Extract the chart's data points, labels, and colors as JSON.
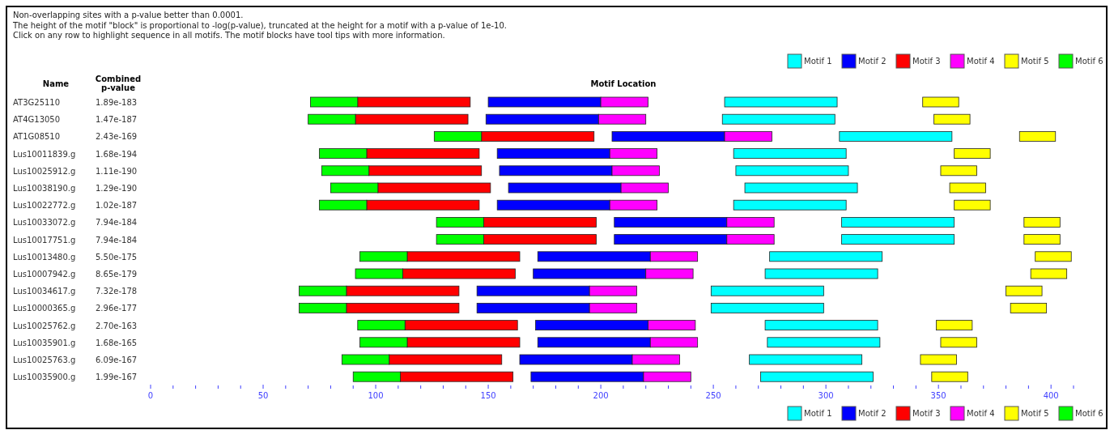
{
  "chart_data": {
    "type": "bar",
    "orientation": "horizontal",
    "annotations": [
      "Non-overlapping sites with a p-value better than 0.0001.",
      "The height of the motif \"block\" is proportional to -log(p-value), truncated at the height for a motif with a p-value of 1e-10.",
      "Click on any row to highlight sequence in all motifs. The motif blocks have tool tips with more information."
    ],
    "ylabel": "Name",
    "y2label": "Combined p-value",
    "xlabel": "Motif Location",
    "categories": [
      "AT3G25110",
      "AT4G13050",
      "AT1G08510",
      "Lus10011839.g",
      "Lus10025912.g",
      "Lus10038190.g",
      "Lus10022772.g",
      "Lus10033072.g",
      "Lus10017751.g",
      "Lus10013480.g",
      "Lus10007942.g",
      "Lus10034617.g",
      "Lus10000365.g",
      "Lus10025762.g",
      "Lus10035901.g",
      "Lus10025763.g",
      "Lus10035900.g"
    ],
    "y2_categories": [
      "1.89e-183",
      "1.47e-187",
      "2.43e-169",
      "1.68e-194",
      "1.11e-190",
      "1.29e-190",
      "1.02e-187",
      "7.94e-184",
      "7.94e-184",
      "5.50e-175",
      "8.65e-179",
      "7.32e-178",
      "2.96e-177",
      "2.70e-163",
      "1.68e-165",
      "6.09e-167",
      "1.99e-167"
    ],
    "series": [
      {
        "name": "Motif 1",
        "color": "#00ffff",
        "base": [
          255,
          254,
          306,
          259,
          260,
          264,
          259,
          307,
          307,
          275,
          273,
          249,
          249,
          273,
          274,
          266,
          271
        ],
        "values": [
          50,
          50,
          50,
          50,
          50,
          50,
          50,
          50,
          50,
          50,
          50,
          50,
          50,
          50,
          50,
          50,
          50
        ]
      },
      {
        "name": "Motif 2",
        "color": "#0000ff",
        "base": [
          150,
          149,
          205,
          154,
          155,
          159,
          154,
          206,
          206,
          172,
          170,
          145,
          145,
          171,
          172,
          164,
          169
        ],
        "values": [
          50,
          50,
          50,
          50,
          50,
          50,
          50,
          50,
          50,
          50,
          50,
          50,
          50,
          50,
          50,
          50,
          50
        ]
      },
      {
        "name": "Motif 3",
        "color": "#ff0000",
        "base": [
          92,
          91,
          147,
          96,
          97,
          101,
          96,
          148,
          148,
          114,
          112,
          87,
          87,
          113,
          114,
          106,
          111
        ],
        "values": [
          50,
          50,
          50,
          50,
          50,
          50,
          50,
          50,
          50,
          50,
          50,
          50,
          50,
          50,
          50,
          50,
          50
        ]
      },
      {
        "name": "Motif 4",
        "color": "#ff00ff",
        "base": [
          200,
          199,
          255,
          204,
          205,
          209,
          204,
          256,
          256,
          222,
          220,
          195,
          195,
          221,
          222,
          214,
          219
        ],
        "values": [
          21,
          21,
          21,
          21,
          21,
          21,
          21,
          21,
          21,
          21,
          21,
          21,
          21,
          21,
          21,
          21,
          21
        ]
      },
      {
        "name": "Motif 5",
        "color": "#ffff00",
        "base": [
          343,
          348,
          386,
          357,
          351,
          355,
          357,
          388,
          388,
          393,
          391,
          380,
          382,
          349,
          351,
          342,
          347
        ],
        "values": [
          16,
          16,
          16,
          16,
          16,
          16,
          16,
          16,
          16,
          16,
          16,
          16,
          16,
          16,
          16,
          16,
          16
        ]
      },
      {
        "name": "Motif 6",
        "color": "#00ff00",
        "base": [
          71,
          70,
          126,
          75,
          76,
          80,
          75,
          127,
          127,
          93,
          91,
          66,
          66,
          92,
          93,
          85,
          90
        ],
        "values": [
          21,
          21,
          21,
          21,
          21,
          21,
          21,
          21,
          21,
          21,
          21,
          21,
          21,
          21,
          21,
          21,
          21
        ]
      }
    ],
    "xlim": [
      0,
      410
    ],
    "xticks": [
      0,
      {
        "value": 10,
        "label": null
      },
      {
        "value": 20,
        "label": null
      },
      {
        "value": 30,
        "label": null
      },
      {
        "value": 40,
        "label": null
      },
      50,
      {
        "value": 60,
        "label": null
      },
      {
        "value": 70,
        "label": null
      },
      {
        "value": 80,
        "label": null
      },
      {
        "value": 90,
        "label": null
      },
      100,
      {
        "value": 110,
        "label": null
      },
      {
        "value": 120,
        "label": null
      },
      {
        "value": 130,
        "label": null
      },
      {
        "value": 140,
        "label": null
      },
      150,
      {
        "value": 160,
        "label": null
      },
      {
        "value": 170,
        "label": null
      },
      {
        "value": 180,
        "label": null
      },
      {
        "value": 190,
        "label": null
      },
      200,
      {
        "value": 210,
        "label": null
      },
      {
        "value": 220,
        "label": null
      },
      {
        "value": 230,
        "label": null
      },
      {
        "value": 240,
        "label": null
      },
      250,
      {
        "value": 260,
        "label": null
      },
      {
        "value": 270,
        "label": null
      },
      {
        "value": 280,
        "label": null
      },
      {
        "value": 290,
        "label": null
      },
      300,
      {
        "value": 310,
        "label": null
      },
      {
        "value": 320,
        "label": null
      },
      {
        "value": 330,
        "label": null
      },
      {
        "value": 340,
        "label": null
      },
      350,
      {
        "value": 360,
        "label": null
      },
      {
        "value": 370,
        "label": null
      },
      {
        "value": 380,
        "label": null
      },
      {
        "value": 390,
        "label": null
      },
      400,
      {
        "value": 410,
        "label": null
      }
    ],
    "legend": "bottom right",
    "grid": false
  }
}
